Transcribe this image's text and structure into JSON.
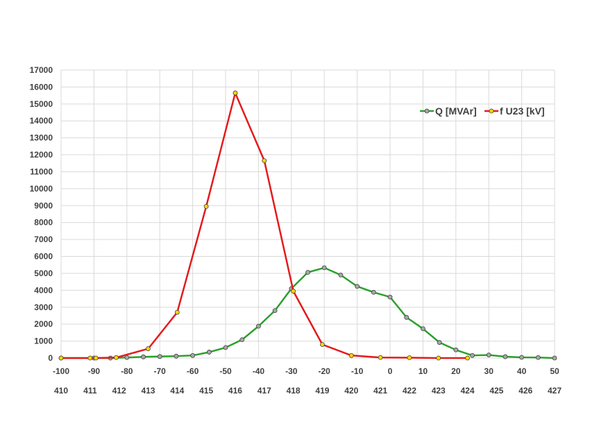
{
  "chart_data": {
    "type": "line",
    "x_primary": {
      "range": [
        -100,
        50
      ],
      "ticks": [
        "-100",
        "-90",
        "-80",
        "-70",
        "-60",
        "-50",
        "-40",
        "-30",
        "-20",
        "-10",
        "0",
        "10",
        "20",
        "30",
        "40",
        "50"
      ]
    },
    "x_secondary": {
      "range": [
        410,
        427
      ],
      "ticks": [
        "410",
        "411",
        "412",
        "413",
        "414",
        "415",
        "416",
        "417",
        "418",
        "419",
        "420",
        "421",
        "422",
        "423",
        "424",
        "425",
        "426",
        "427"
      ]
    },
    "y": {
      "range": [
        0,
        17000
      ],
      "ticks": [
        "0",
        "1000",
        "2000",
        "3000",
        "4000",
        "5000",
        "6000",
        "7000",
        "8000",
        "9000",
        "10000",
        "11000",
        "12000",
        "13000",
        "14000",
        "15000",
        "16000",
        "17000"
      ]
    },
    "grid": true,
    "legend_position": "top-right",
    "series": [
      {
        "name": "Q [MVAr]",
        "color": "#2ca02c",
        "marker_color": "#a6a6a6",
        "x_axis": "primary",
        "points": [
          [
            -100,
            0
          ],
          [
            -90,
            0
          ],
          [
            -85,
            0
          ],
          [
            -80,
            30
          ],
          [
            -75,
            70
          ],
          [
            -70,
            90
          ],
          [
            -65,
            110
          ],
          [
            -60,
            150
          ],
          [
            -55,
            350
          ],
          [
            -50,
            620
          ],
          [
            -45,
            1080
          ],
          [
            -40,
            1880
          ],
          [
            -35,
            2800
          ],
          [
            -30,
            4100
          ],
          [
            -25,
            5060
          ],
          [
            -20,
            5330
          ],
          [
            -15,
            4900
          ],
          [
            -10,
            4230
          ],
          [
            -5,
            3880
          ],
          [
            0,
            3600
          ],
          [
            5,
            2400
          ],
          [
            10,
            1730
          ],
          [
            15,
            920
          ],
          [
            20,
            480
          ],
          [
            25,
            150
          ],
          [
            30,
            180
          ],
          [
            35,
            80
          ],
          [
            40,
            40
          ],
          [
            45,
            30
          ],
          [
            50,
            0
          ]
        ]
      },
      {
        "name": "f U23 [kV]",
        "color": "#e41a1c",
        "marker_color": "#ffd700",
        "x_axis": "secondary",
        "points": [
          [
            410,
            0
          ],
          [
            411,
            0
          ],
          [
            411.2,
            0
          ],
          [
            411.9,
            30
          ],
          [
            413,
            550
          ],
          [
            414,
            2700
          ],
          [
            415,
            8950
          ],
          [
            416,
            15650
          ],
          [
            417,
            11650
          ],
          [
            418,
            3950
          ],
          [
            419,
            800
          ],
          [
            420,
            150
          ],
          [
            421,
            30
          ],
          [
            422,
            20
          ],
          [
            423,
            0
          ],
          [
            424,
            0
          ]
        ]
      }
    ]
  }
}
